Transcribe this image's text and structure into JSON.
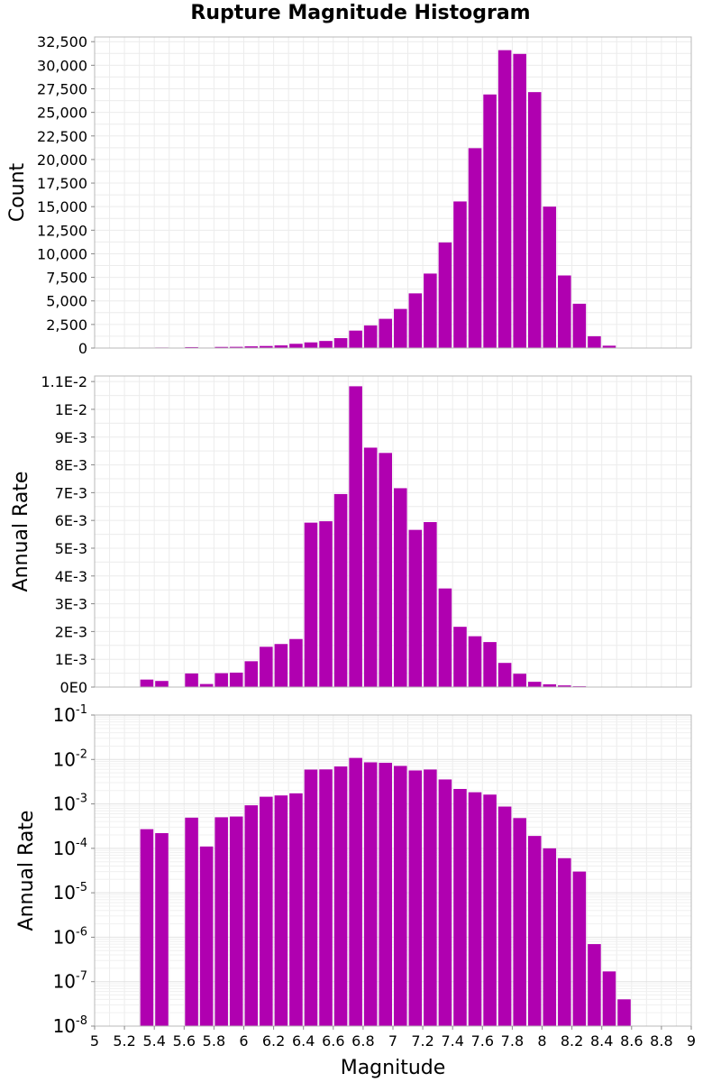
{
  "chart_data": {
    "type": "bar",
    "title": "Rupture Magnitude Histogram",
    "xlabel": "Magnitude",
    "xlim": [
      5,
      9
    ],
    "xticks": [
      "5",
      "5.2",
      "5.4",
      "5.6",
      "5.8",
      "6",
      "6.2",
      "6.4",
      "6.6",
      "6.8",
      "7",
      "7.2",
      "7.4",
      "7.6",
      "7.8",
      "8",
      "8.2",
      "8.4",
      "8.6",
      "8.8",
      "9"
    ],
    "bin_width": 0.1,
    "bin_centers": [
      5.05,
      5.15,
      5.25,
      5.35,
      5.45,
      5.55,
      5.65,
      5.75,
      5.85,
      5.95,
      6.05,
      6.15,
      6.25,
      6.35,
      6.45,
      6.55,
      6.65,
      6.75,
      6.85,
      6.95,
      7.05,
      7.15,
      7.25,
      7.35,
      7.45,
      7.55,
      7.65,
      7.75,
      7.85,
      7.95,
      8.05,
      8.15,
      8.25,
      8.35,
      8.45,
      8.55,
      8.65,
      8.75,
      8.85,
      8.95
    ],
    "bar_color": "#b000b0",
    "panels": [
      {
        "name": "count",
        "ylabel": "Count",
        "scale": "linear",
        "ylim": [
          0,
          33000
        ],
        "yticks": [
          0,
          2500,
          5000,
          7500,
          10000,
          12500,
          15000,
          17500,
          20000,
          22500,
          25000,
          27500,
          30000,
          32500
        ],
        "ytick_labels": [
          "0",
          "2,500",
          "5,000",
          "7,500",
          "10,000",
          "12,500",
          "15,000",
          "17,500",
          "20,000",
          "22,500",
          "25,000",
          "27,500",
          "30,000",
          "32,500"
        ],
        "values": [
          0,
          10,
          20,
          50,
          60,
          20,
          100,
          50,
          120,
          130,
          180,
          220,
          280,
          450,
          600,
          750,
          1050,
          1850,
          2400,
          3100,
          4150,
          5800,
          7900,
          11200,
          15550,
          21200,
          26900,
          31600,
          31200,
          27150,
          15000,
          7700,
          4700,
          1250,
          250,
          0,
          0,
          0,
          0,
          0
        ]
      },
      {
        "name": "rate-linear",
        "ylabel": "Annual Rate",
        "scale": "linear",
        "ylim": [
          0,
          0.0112
        ],
        "yticks": [
          0,
          0.001,
          0.002,
          0.003,
          0.004,
          0.005,
          0.006,
          0.007,
          0.008,
          0.009,
          0.01,
          0.011
        ],
        "ytick_labels": [
          "0E0",
          "1E-3",
          "2E-3",
          "3E-3",
          "4E-3",
          "5E-3",
          "6E-3",
          "7E-3",
          "8E-3",
          "9E-3",
          "1E-2",
          "1.1E-2"
        ],
        "values": [
          0,
          0,
          0,
          0.00027,
          0.00022,
          0,
          0.00049,
          0.00011,
          0.0005,
          0.00052,
          0.00093,
          0.00145,
          0.00155,
          0.00173,
          0.00592,
          0.00597,
          0.00695,
          0.01083,
          0.00862,
          0.00843,
          0.00716,
          0.00566,
          0.00594,
          0.00355,
          0.00217,
          0.00183,
          0.00162,
          0.00087,
          0.00048,
          0.00019,
          0.0001,
          6e-05,
          3e-05,
          7e-07,
          1.7e-07,
          4e-08,
          0,
          0,
          0,
          0
        ]
      },
      {
        "name": "rate-log",
        "ylabel": "Annual Rate",
        "scale": "log",
        "ylim": [
          1e-08,
          0.1
        ],
        "ytick_bases": [
          "10",
          "10",
          "10",
          "10",
          "10",
          "10",
          "10",
          "10"
        ],
        "ytick_exponents": [
          "-8",
          "-7",
          "-6",
          "-5",
          "-4",
          "-3",
          "-2",
          "-1"
        ],
        "values": [
          0,
          0,
          0,
          0.00027,
          0.00022,
          0,
          0.00049,
          0.00011,
          0.0005,
          0.00052,
          0.00093,
          0.00145,
          0.00155,
          0.00173,
          0.00592,
          0.00597,
          0.00695,
          0.01083,
          0.00862,
          0.00843,
          0.00716,
          0.00566,
          0.00594,
          0.00355,
          0.00217,
          0.00183,
          0.00162,
          0.00087,
          0.00048,
          0.00019,
          0.0001,
          6e-05,
          3e-05,
          7e-07,
          1.7e-07,
          4e-08,
          0,
          0,
          0,
          0
        ]
      }
    ]
  }
}
